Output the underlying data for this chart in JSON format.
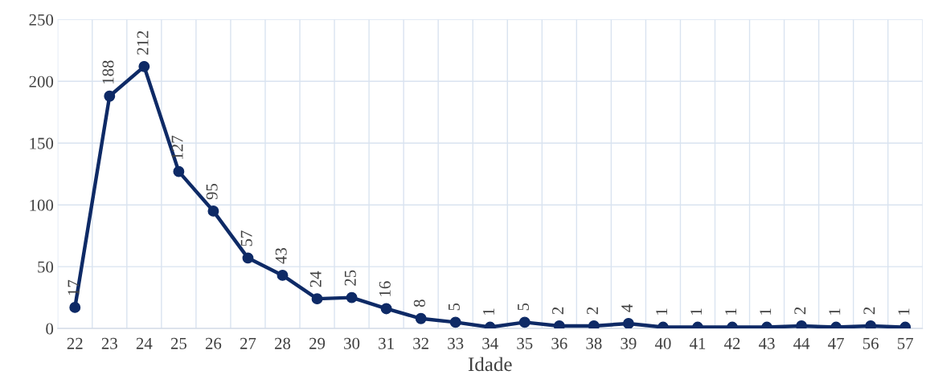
{
  "chart_data": {
    "type": "line",
    "xlabel": "Idade",
    "categories": [
      "22",
      "23",
      "24",
      "25",
      "26",
      "27",
      "28",
      "29",
      "30",
      "31",
      "32",
      "33",
      "34",
      "35",
      "36",
      "38",
      "39",
      "40",
      "41",
      "42",
      "43",
      "44",
      "47",
      "56",
      "57"
    ],
    "series": [
      {
        "color": "#0e2a66",
        "values": [
          17,
          188,
          212,
          127,
          95,
          57,
          43,
          24,
          25,
          16,
          8,
          5,
          1,
          5,
          2,
          2,
          4,
          1,
          1,
          1,
          1,
          2,
          1,
          2,
          1
        ]
      }
    ],
    "ylim": [
      0,
      250
    ],
    "yticks": [
      0,
      50,
      100,
      150,
      200,
      250
    ],
    "grid": true,
    "marker": "circle",
    "line_style": "solid",
    "data_labels": true
  }
}
